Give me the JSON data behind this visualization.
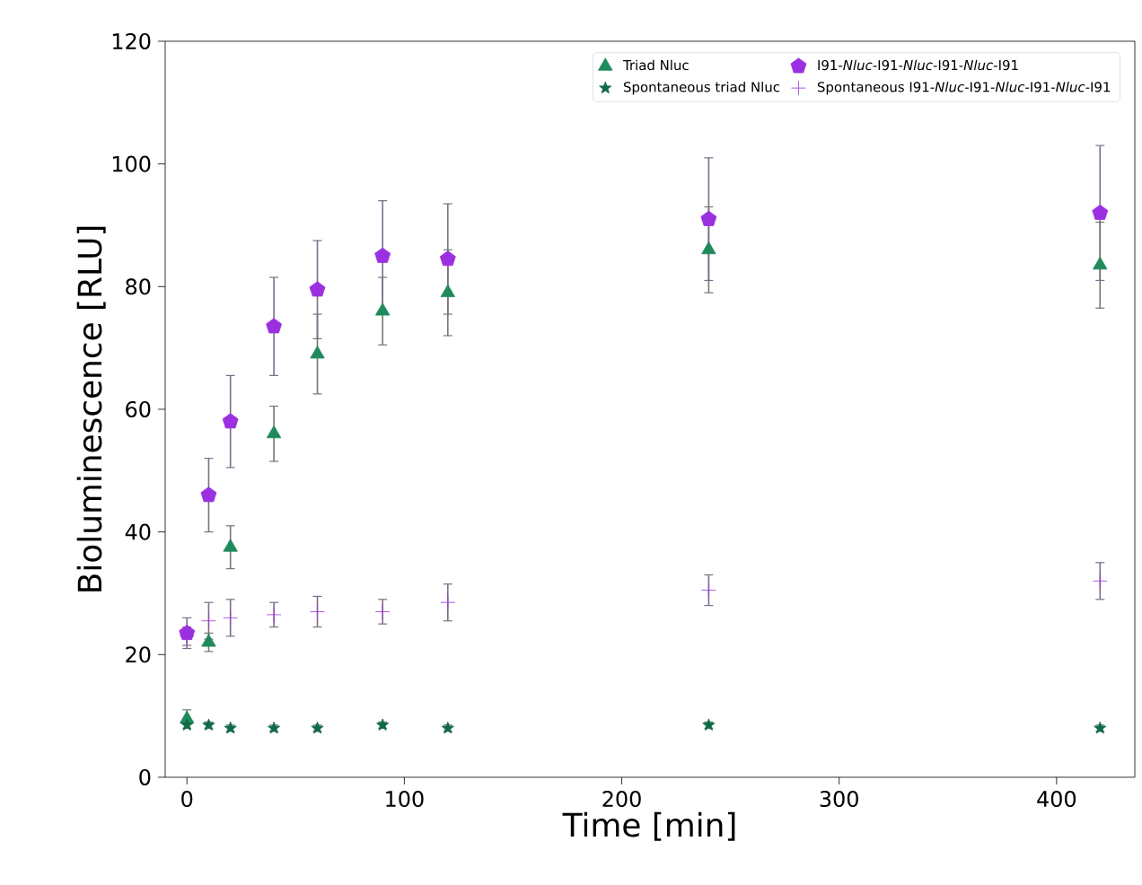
{
  "chart_data": {
    "type": "scatter",
    "xlabel": "Time [min]",
    "ylabel": "Bioluminescence [RLU]",
    "xlim": [
      -10,
      436
    ],
    "xticks": [
      0,
      100,
      200,
      300,
      400
    ],
    "ylim": [
      0,
      120
    ],
    "yticks": [
      0,
      20,
      40,
      60,
      80,
      100,
      120
    ],
    "legend": "top right",
    "grid": false,
    "series": [
      {
        "name": "Triad Nluc",
        "color": "#1f8a5c",
        "marker": "triangle",
        "x": [
          0,
          10,
          20,
          40,
          60,
          90,
          120,
          240,
          420
        ],
        "values": [
          9.5,
          22,
          37.5,
          56,
          69,
          76,
          79,
          86,
          83.5
        ],
        "errors": [
          1.5,
          1.5,
          3.5,
          4.5,
          6.5,
          5.5,
          7,
          7,
          7
        ]
      },
      {
        "name": "Spontaneous triad Nluc",
        "color": "#0f6b45",
        "marker": "star",
        "x": [
          0,
          10,
          20,
          40,
          60,
          90,
          120,
          240,
          420
        ],
        "values": [
          8.5,
          8.5,
          8,
          8,
          8,
          8.5,
          8,
          8.5,
          8
        ],
        "errors": [
          null,
          0.5,
          0.5,
          0.5,
          0.5,
          0.5,
          0.5,
          0.5,
          0.5
        ]
      },
      {
        "name": "I91-*Nluc*-I91-*Nluc*-I91-*Nluc*-I91",
        "color": "#9b30e0",
        "x": [
          0,
          10,
          20,
          40,
          60,
          90,
          120,
          240,
          420
        ],
        "values": [
          23.5,
          46,
          58,
          73.5,
          79.5,
          85,
          84.5,
          91,
          92
        ],
        "errors": [
          2.5,
          6,
          7.5,
          8,
          8,
          9,
          9,
          10,
          11
        ]
      },
      {
        "name": "Spontaneous I91-*Nluc*-I91-*Nluc*-I91-*Nluc*-I91",
        "color": "#9b30e0",
        "marker": "cross",
        "x": [
          0,
          10,
          20,
          40,
          60,
          90,
          120,
          240,
          420
        ],
        "values": [
          23,
          25.5,
          26,
          26.5,
          27,
          27,
          28.5,
          30.5,
          32
        ],
        "errors": [
          1.5,
          3,
          3,
          2,
          2.5,
          2,
          3,
          2.5,
          3
        ]
      }
    ]
  }
}
